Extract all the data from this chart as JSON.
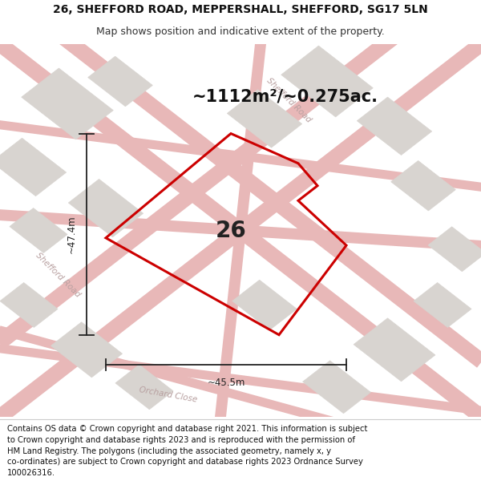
{
  "title_line1": "26, SHEFFORD ROAD, MEPPERSHALL, SHEFFORD, SG17 5LN",
  "title_line2": "Map shows position and indicative extent of the property.",
  "area_text": "~1112m²/~0.275ac.",
  "label_26": "26",
  "dim_h": "~47.4m",
  "dim_w": "~45.5m",
  "footer_text": "Contains OS data © Crown copyright and database right 2021. This information is subject\nto Crown copyright and database rights 2023 and is reproduced with the permission of\nHM Land Registry. The polygons (including the associated geometry, namely x, y\nco-ordinates) are subject to Crown copyright and database rights 2023 Ordnance Survey\n100026316.",
  "bg_color": "#f5f3f0",
  "map_bg": "#f0ece6",
  "road_color": "#e8b8b8",
  "road_outline_color": "#e0a0a0",
  "building_color": "#d8d4d0",
  "building_outline": "#c8c4c0",
  "plot_outline_color": "#cc0000",
  "road_label_color": "#b8a0a0",
  "footer_bg": "#ffffff",
  "title_bg": "#ffffff",
  "dim_color": "#222222"
}
